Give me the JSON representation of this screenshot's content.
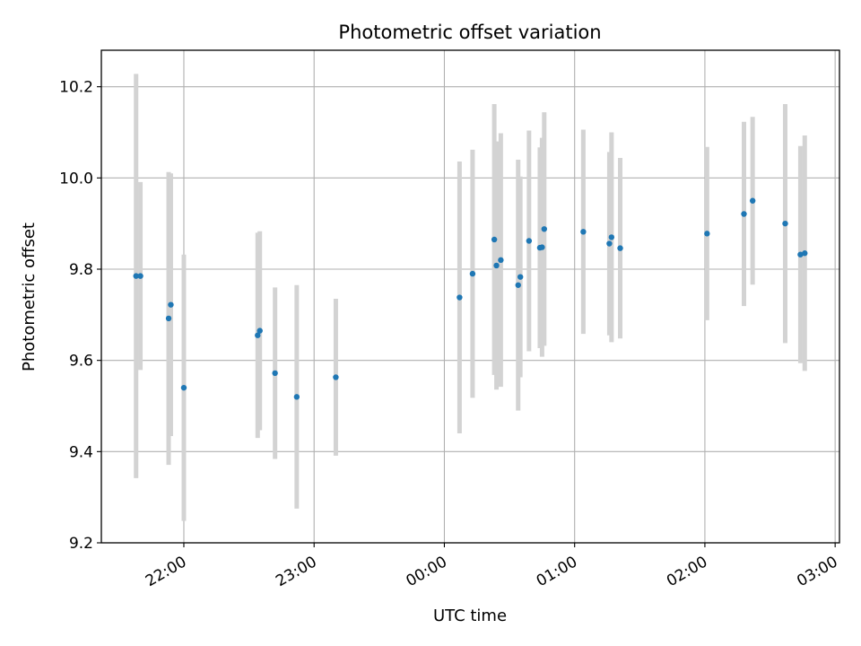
{
  "chart_data": {
    "type": "scatter",
    "title": "Photometric offset variation",
    "xlabel": "UTC time",
    "ylabel": "Photometric offset",
    "x_ticks": [
      "22:00",
      "23:00",
      "00:00",
      "01:00",
      "02:00",
      "03:00"
    ],
    "y_ticks": [
      "9.2",
      "9.4",
      "9.6",
      "9.8",
      "10.0",
      "10.2"
    ],
    "xlim": [
      "21:22",
      "03:02"
    ],
    "ylim": [
      9.2,
      10.28
    ],
    "grid": true,
    "colors": {
      "marker": "#1f77b4",
      "errorbar": "#d3d3d3",
      "grid": "#b0b0b0"
    },
    "series": [
      {
        "points": [
          {
            "x": "21:38",
            "y": 9.785,
            "yerr": 0.443
          },
          {
            "x": "21:40",
            "y": 9.785,
            "yerr": 0.206
          },
          {
            "x": "21:53",
            "y": 9.692,
            "yerr": 0.321
          },
          {
            "x": "21:54",
            "y": 9.722,
            "yerr": 0.288
          },
          {
            "x": "22:00",
            "y": 9.54,
            "yerr": 0.292
          },
          {
            "x": "22:34",
            "y": 9.655,
            "yerr": 0.225
          },
          {
            "x": "22:35",
            "y": 9.665,
            "yerr": 0.218
          },
          {
            "x": "22:42",
            "y": 9.572,
            "yerr": 0.188
          },
          {
            "x": "22:52",
            "y": 9.52,
            "yerr": 0.245
          },
          {
            "x": "23:10",
            "y": 9.563,
            "yerr": 0.172
          },
          {
            "x": "00:07",
            "y": 9.738,
            "yerr": 0.298
          },
          {
            "x": "00:13",
            "y": 9.79,
            "yerr": 0.272
          },
          {
            "x": "00:23",
            "y": 9.865,
            "yerr": 0.297
          },
          {
            "x": "00:24",
            "y": 9.808,
            "yerr": 0.272
          },
          {
            "x": "00:26",
            "y": 9.82,
            "yerr": 0.278
          },
          {
            "x": "00:34",
            "y": 9.765,
            "yerr": 0.275
          },
          {
            "x": "00:35",
            "y": 9.783,
            "yerr": 0.22
          },
          {
            "x": "00:39",
            "y": 9.862,
            "yerr": 0.242
          },
          {
            "x": "00:44",
            "y": 9.847,
            "yerr": 0.22
          },
          {
            "x": "00:45",
            "y": 9.848,
            "yerr": 0.24
          },
          {
            "x": "00:46",
            "y": 9.888,
            "yerr": 0.256
          },
          {
            "x": "01:04",
            "y": 9.882,
            "yerr": 0.224
          },
          {
            "x": "01:16",
            "y": 9.856,
            "yerr": 0.201
          },
          {
            "x": "01:17",
            "y": 9.87,
            "yerr": 0.23
          },
          {
            "x": "01:21",
            "y": 9.846,
            "yerr": 0.198
          },
          {
            "x": "02:01",
            "y": 9.878,
            "yerr": 0.19
          },
          {
            "x": "02:18",
            "y": 9.921,
            "yerr": 0.202
          },
          {
            "x": "02:22",
            "y": 9.95,
            "yerr": 0.184
          },
          {
            "x": "02:37",
            "y": 9.9,
            "yerr": 0.262
          },
          {
            "x": "02:44",
            "y": 9.832,
            "yerr": 0.238
          },
          {
            "x": "02:46",
            "y": 9.835,
            "yerr": 0.258
          }
        ]
      }
    ]
  }
}
